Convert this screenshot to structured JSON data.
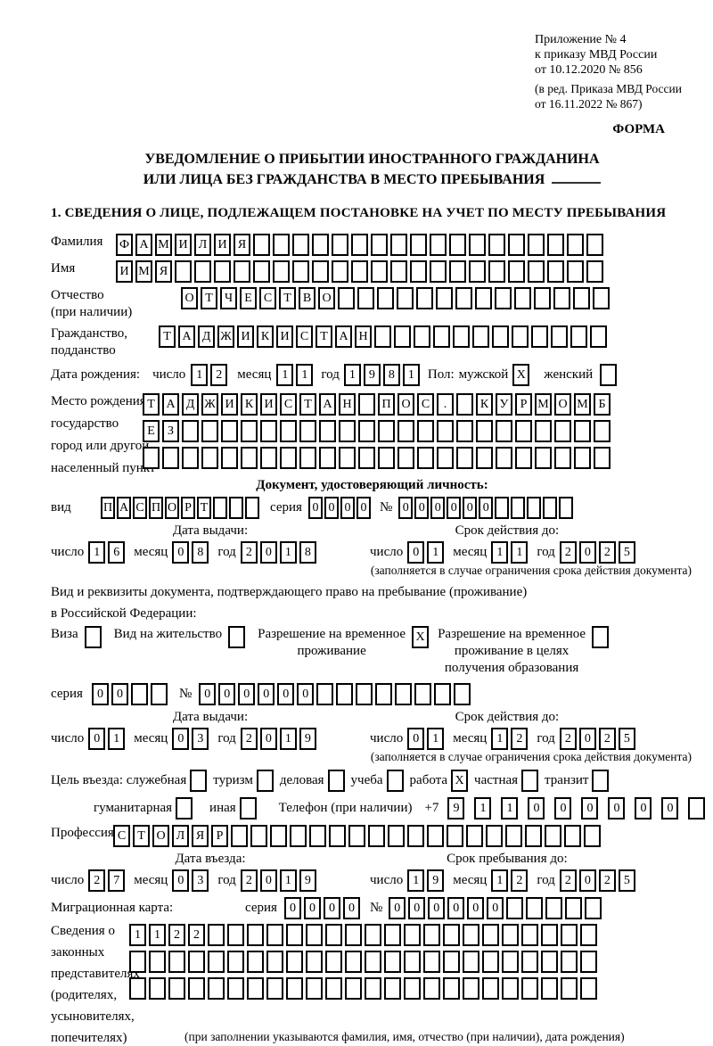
{
  "header": {
    "appendix_lines": [
      "Приложение № 4",
      "к приказу МВД России",
      "от 10.12.2020 № 856"
    ],
    "edition_lines": [
      "(в ред. Приказа МВД России",
      "от 16.11.2022 № 867)"
    ],
    "forma": "ФОРМА"
  },
  "title": {
    "line1": "УВЕДОМЛЕНИЕ О ПРИБЫТИИ ИНОСТРАННОГО ГРАЖДАНИНА",
    "line2": "ИЛИ ЛИЦА БЕЗ ГРАЖДАНСТВА В МЕСТО ПРЕБЫВАНИЯ"
  },
  "section1_heading": "1. СВЕДЕНИЯ О ЛИЦЕ, ПОДЛЕЖАЩЕМ ПОСТАНОВКЕ НА УЧЕТ ПО МЕСТУ ПРЕБЫВАНИЯ",
  "surname": {
    "label": "Фамилия",
    "value": "ФАМИЛИЯ",
    "count": 25
  },
  "firstname": {
    "label": "Имя",
    "value": "ИМЯ",
    "count": 25
  },
  "patronymic": {
    "label": "Отчество",
    "label2": "(при наличии)",
    "value": "ОТЧЕСТВО",
    "count": 22
  },
  "citizenship": {
    "label": "Гражданство,",
    "label2": "подданство",
    "value": "ТАДЖИКИСТАН",
    "count": 23
  },
  "date_labels": {
    "day": "число",
    "month": "месяц",
    "year": "год"
  },
  "birth": {
    "label": "Дата рождения:",
    "day": {
      "value": "12",
      "count": 2
    },
    "month": {
      "value": "11",
      "count": 2
    },
    "year": {
      "value": "1981",
      "count": 4
    },
    "sex_label": "Пол:",
    "male_label": "мужской",
    "female_label": "женский",
    "male": {
      "value": "X",
      "count": 1
    },
    "female": {
      "value": "",
      "count": 1
    }
  },
  "birthplace": {
    "label_lines": [
      "Место рождения:",
      "государство",
      "город или другой",
      "населенный пункт"
    ],
    "row1": {
      "value": "ТАДЖИКИСТАН ПОС. КУРМОМБ",
      "count": 24
    },
    "row2": {
      "value": "ЕЗ",
      "count": 24
    },
    "row3": {
      "value": "",
      "count": 24
    }
  },
  "iddoc": {
    "heading": "Документ, удостоверяющий личность:",
    "vid_label": "вид",
    "vid": {
      "value": "ПАСПОРТ",
      "count": 10
    },
    "series_label": "серия",
    "series": {
      "value": "0000",
      "count": 4
    },
    "number_label": "№",
    "number": {
      "value": "000000",
      "count": 11
    },
    "issue_heading": "Дата выдачи:",
    "issue": {
      "day": {
        "value": "16",
        "count": 2
      },
      "month": {
        "value": "08",
        "count": 2
      },
      "year": {
        "value": "2018",
        "count": 4
      }
    },
    "valid_heading": "Срок действия до:",
    "valid": {
      "day": {
        "value": "01",
        "count": 2
      },
      "month": {
        "value": "11",
        "count": 2
      },
      "year": {
        "value": "2025",
        "count": 4
      }
    },
    "note": "(заполняется в случае ограничения срока действия документа)"
  },
  "staydoc": {
    "line1": "Вид и реквизиты документа, подтверждающего право на пребывание (проживание)",
    "line2": "в Российской Федерации:",
    "visa_label": "Виза",
    "visa": {
      "value": "",
      "count": 1
    },
    "residence_label": "Вид на жительство",
    "residence": {
      "value": "",
      "count": 1
    },
    "rvp_label1": "Разрешение на временное",
    "rvp_label2": "проживание",
    "rvp": {
      "value": "X",
      "count": 1
    },
    "rvpo_label1": "Разрешение на временное",
    "rvpo_label2": "проживание в целях",
    "rvpo_label3": "получения образования",
    "rvpo": {
      "value": "",
      "count": 1
    },
    "series_label": "серия",
    "series": {
      "value": "00",
      "count": 4
    },
    "number_label": "№",
    "number": {
      "value": "000000",
      "count": 14
    },
    "issue_heading": "Дата выдачи:",
    "issue": {
      "day": {
        "value": "01",
        "count": 2
      },
      "month": {
        "value": "03",
        "count": 2
      },
      "year": {
        "value": "2019",
        "count": 4
      }
    },
    "valid_heading": "Срок действия до:",
    "valid": {
      "day": {
        "value": "01",
        "count": 2
      },
      "month": {
        "value": "12",
        "count": 2
      },
      "year": {
        "value": "2025",
        "count": 4
      }
    },
    "note": "(заполняется в случае ограничения срока действия документа)"
  },
  "purpose": {
    "label": "Цель въезда:",
    "opt1_label": "служебная",
    "opt1": {
      "value": "",
      "count": 1
    },
    "opt2_label": "туризм",
    "opt2": {
      "value": "",
      "count": 1
    },
    "opt3_label": "деловая",
    "opt3": {
      "value": "",
      "count": 1
    },
    "opt4_label": "учеба",
    "opt4": {
      "value": "",
      "count": 1
    },
    "opt5_label": "работа",
    "opt5": {
      "value": "X",
      "count": 1
    },
    "opt6_label": "частная",
    "opt6": {
      "value": "",
      "count": 1
    },
    "opt7_label": "транзит",
    "opt7": {
      "value": "",
      "count": 1
    },
    "opt8_label": "гуманитарная",
    "opt8": {
      "value": "",
      "count": 1
    },
    "opt9_label": "иная",
    "opt9": {
      "value": "",
      "count": 1
    },
    "phone_label": "Телефон (при наличии)",
    "phone_prefix": "+7",
    "phone": {
      "value": "911000000",
      "count": 10
    }
  },
  "profession": {
    "label": "Профессия",
    "value": "СТОЛЯР",
    "count": 25
  },
  "entry": {
    "heading": "Дата въезда:",
    "day": {
      "value": "27",
      "count": 2
    },
    "month": {
      "value": "03",
      "count": 2
    },
    "year": {
      "value": "2019",
      "count": 4
    }
  },
  "stay": {
    "heading": "Срок пребывания до:",
    "day": {
      "value": "19",
      "count": 2
    },
    "month": {
      "value": "12",
      "count": 2
    },
    "year": {
      "value": "2025",
      "count": 4
    }
  },
  "migcard": {
    "label": "Миграционная карта:",
    "series_label": "серия",
    "series": {
      "value": "0000",
      "count": 4
    },
    "number_label": "№",
    "number": {
      "value": "000000",
      "count": 11
    }
  },
  "representatives": {
    "label_lines": [
      "Сведения о",
      "законных",
      "представителях",
      "(родителях,",
      "усыновителях,",
      "попечителях)"
    ],
    "row1": {
      "value": "1122",
      "count": 24
    },
    "row2": {
      "value": "",
      "count": 24
    },
    "row3": {
      "value": "",
      "count": 24
    },
    "note": "(при заполнении указываются фамилия, имя, отчество (при наличии), дата рождения)"
  }
}
